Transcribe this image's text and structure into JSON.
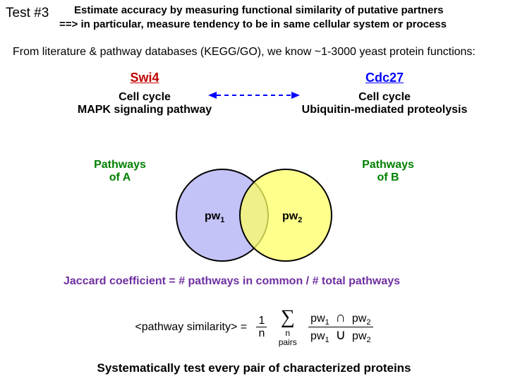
{
  "header": {
    "test_label": "Test #3",
    "title_line1": "Estimate accuracy by measuring functional similarity of putative partners",
    "title_line2": "==> in particular, measure tendency to be in same cellular system or process"
  },
  "intro": "From literature & pathway databases (KEGG/GO), we know ~1-3000 yeast protein functions:",
  "proteins": {
    "left": {
      "name": "Swi4",
      "func1": "Cell cycle",
      "func2": "MAPK signaling pathway"
    },
    "right": {
      "name": "Cdc27",
      "func1": "Cell cycle",
      "func2": "Ubiquitin-mediated proteolysis"
    }
  },
  "venn": {
    "left_label": "Pathways\nof A",
    "right_label": "Pathways\nof B",
    "pw1": "pw",
    "pw1_sub": "1",
    "pw2": "pw",
    "pw2_sub": "2",
    "circleA_fill": "#b8b8f7",
    "circleB_fill": "#ffff66",
    "stroke": "#000000"
  },
  "jaccard": "Jaccard coefficient = # pathways in common / # total pathways",
  "formula": {
    "lhs": "<pathway similarity> =",
    "one": "1",
    "n": "n",
    "pairs": "pairs",
    "pw1": "pw",
    "s1": "1",
    "pw2": "pw",
    "s2": "2",
    "intersect": "∩",
    "union": "∪",
    "sigma": "∑"
  },
  "footer": "Systematically test every pair of characterized proteins",
  "arrow_color": "#0000ff"
}
